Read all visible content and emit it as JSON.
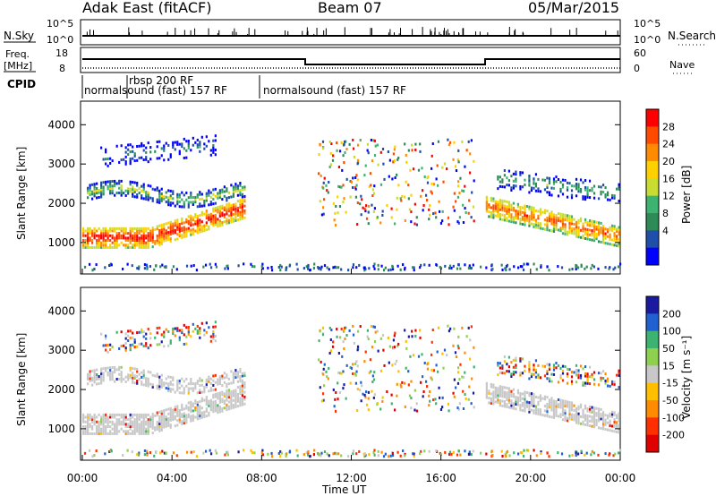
{
  "header": {
    "title": "Adak East (fitACF)",
    "beam": "Beam 07",
    "date": "05/Mar/2015"
  },
  "noise_panel": {
    "left_label": "N.Sky",
    "right_label": "N.Search",
    "ticks": [
      "10^5",
      "10^0"
    ]
  },
  "freq_panel": {
    "left_label_line1": "Freq.",
    "left_label_line2": "[MHz]",
    "left_ticks": [
      "18",
      "8"
    ],
    "right_label": "Nave",
    "right_ticks": [
      "60",
      "0"
    ]
  },
  "cpid_panel": {
    "label": "CPID",
    "segments": [
      {
        "text": "normalsound (fast) 157 RF"
      },
      {
        "text": "rbsp 200 RF"
      },
      {
        "text": "normalsound (fast) 157 RF"
      }
    ]
  },
  "colorbars": {
    "power": {
      "label": "Power [dB]",
      "ticks": [
        "28",
        "24",
        "20",
        "16",
        "12",
        "8",
        "4"
      ],
      "colors": [
        "#ff0000",
        "#ff4a00",
        "#ff8c00",
        "#ffd000",
        "#c8dc32",
        "#3cb371",
        "#2e8b57",
        "#1f4fa8",
        "#0000ff"
      ]
    },
    "velocity": {
      "label": "Velocity [m s⁻¹]",
      "ticks": [
        "200",
        "100",
        "50",
        "15",
        "-15",
        "-50",
        "-100",
        "-200"
      ],
      "colors": [
        "#1a1aa0",
        "#2060d0",
        "#3cb371",
        "#8fd14f",
        "#c8c8c8",
        "#ffbf00",
        "#ff8c00",
        "#ff3000",
        "#e00000"
      ]
    }
  },
  "chart_data": [
    {
      "type": "heatmap",
      "title": "Power",
      "ylabel": "Slant Range [km]",
      "xlabel": "Time UT",
      "ylim": [
        200,
        4600
      ],
      "yticks": [
        "4000",
        "3000",
        "2000",
        "1000"
      ],
      "xticks": [
        "00:00",
        "04:00",
        "08:00",
        "12:00",
        "16:00",
        "20:00",
        "00:00"
      ],
      "colorbar": "Power [dB]"
    },
    {
      "type": "heatmap",
      "title": "Velocity",
      "ylabel": "Slant Range [km]",
      "xlabel": "Time UT",
      "ylim": [
        200,
        4600
      ],
      "yticks": [
        "4000",
        "3000",
        "2000",
        "1000"
      ],
      "xticks": [
        "00:00",
        "04:00",
        "08:00",
        "12:00",
        "16:00",
        "20:00",
        "00:00"
      ],
      "colorbar": "Velocity [m s⁻¹]"
    }
  ],
  "xaxis": {
    "label": "Time UT",
    "ticks": [
      "00:00",
      "04:00",
      "08:00",
      "12:00",
      "16:00",
      "20:00",
      "00:00"
    ],
    "hours": [
      0,
      4,
      8,
      12,
      16,
      20,
      24
    ]
  },
  "yaxis": {
    "label": "Slant Range [km]",
    "ticks": [
      "4000",
      "3000",
      "2000",
      "1000"
    ],
    "values": [
      4000,
      3000,
      2000,
      1000
    ]
  }
}
